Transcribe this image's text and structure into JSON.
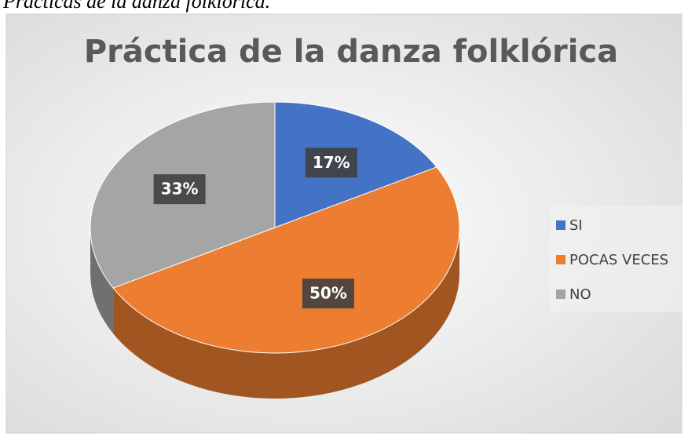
{
  "caption": "Prácticas de la danza folklórica.",
  "chart_data": {
    "type": "pie",
    "title": "Práctica de la danza folklórica",
    "categories": [
      "SI",
      "POCAS VECES",
      "NO"
    ],
    "values": [
      17,
      50,
      33
    ],
    "value_labels": [
      "17%",
      "50%",
      "33%"
    ],
    "colors": [
      "#4472c4",
      "#ed7d31",
      "#a5a5a5"
    ],
    "legend": "right"
  }
}
